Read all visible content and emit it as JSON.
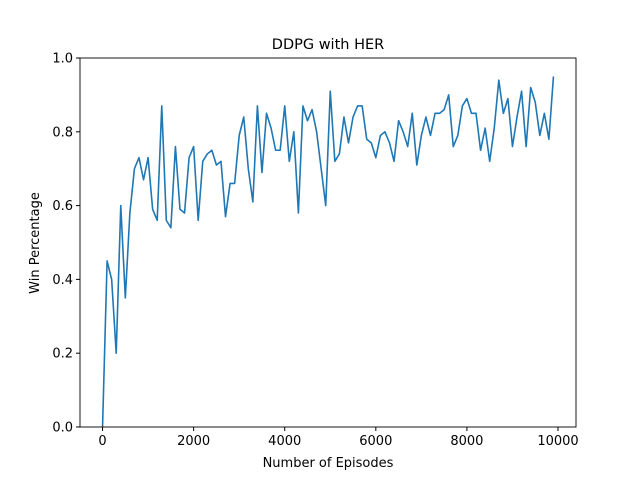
{
  "chart_data": {
    "type": "line",
    "title": "DDPG with HER",
    "x_label": "Number of Episodes",
    "y_label": "Win Percentage",
    "x": [
      0,
      100,
      200,
      300,
      400,
      500,
      600,
      700,
      800,
      900,
      1000,
      1100,
      1200,
      1300,
      1400,
      1500,
      1600,
      1700,
      1800,
      1900,
      2000,
      2100,
      2200,
      2300,
      2400,
      2500,
      2600,
      2700,
      2800,
      2900,
      3000,
      3100,
      3200,
      3300,
      3400,
      3500,
      3600,
      3700,
      3800,
      3900,
      4000,
      4100,
      4200,
      4300,
      4400,
      4500,
      4600,
      4700,
      4800,
      4900,
      5000,
      5100,
      5200,
      5300,
      5400,
      5500,
      5600,
      5700,
      5800,
      5900,
      6000,
      6100,
      6200,
      6300,
      6400,
      6500,
      6600,
      6700,
      6800,
      6900,
      7000,
      7100,
      7200,
      7300,
      7400,
      7500,
      7600,
      7700,
      7800,
      7900,
      8000,
      8100,
      8200,
      8300,
      8400,
      8500,
      8600,
      8700,
      8800,
      8900,
      9000,
      9100,
      9200,
      9300,
      9400,
      9500,
      9600,
      9700,
      9800,
      9900
    ],
    "series": [
      {
        "name": "Win Percentage",
        "color": "#1f77b4",
        "values": [
          0.0,
          0.45,
          0.4,
          0.2,
          0.6,
          0.35,
          0.58,
          0.7,
          0.73,
          0.67,
          0.73,
          0.59,
          0.56,
          0.87,
          0.56,
          0.54,
          0.76,
          0.59,
          0.58,
          0.73,
          0.76,
          0.56,
          0.72,
          0.74,
          0.75,
          0.71,
          0.72,
          0.57,
          0.66,
          0.66,
          0.79,
          0.84,
          0.7,
          0.61,
          0.87,
          0.69,
          0.85,
          0.81,
          0.75,
          0.75,
          0.87,
          0.72,
          0.8,
          0.58,
          0.87,
          0.83,
          0.86,
          0.8,
          0.7,
          0.6,
          0.91,
          0.72,
          0.74,
          0.84,
          0.77,
          0.84,
          0.87,
          0.87,
          0.78,
          0.77,
          0.73,
          0.79,
          0.8,
          0.77,
          0.72,
          0.83,
          0.8,
          0.76,
          0.85,
          0.71,
          0.79,
          0.84,
          0.79,
          0.85,
          0.85,
          0.86,
          0.9,
          0.76,
          0.79,
          0.87,
          0.89,
          0.85,
          0.85,
          0.75,
          0.81,
          0.72,
          0.81,
          0.94,
          0.85,
          0.89,
          0.76,
          0.84,
          0.91,
          0.76,
          0.92,
          0.88,
          0.79,
          0.85,
          0.78,
          0.95
        ]
      }
    ],
    "xlim": [
      -495,
      10395
    ],
    "ylim": [
      0,
      1
    ],
    "xticks": [
      0,
      2000,
      4000,
      6000,
      8000,
      10000
    ],
    "yticks": [
      {
        "value": 0,
        "label": "0.0"
      },
      {
        "value": 0.2,
        "label": "0.2"
      },
      {
        "value": 0.4,
        "label": "0.4"
      },
      {
        "value": 0.6,
        "label": "0.6"
      },
      {
        "value": 0.8,
        "label": "0.8"
      },
      {
        "value": 1,
        "label": "1.0"
      }
    ]
  }
}
